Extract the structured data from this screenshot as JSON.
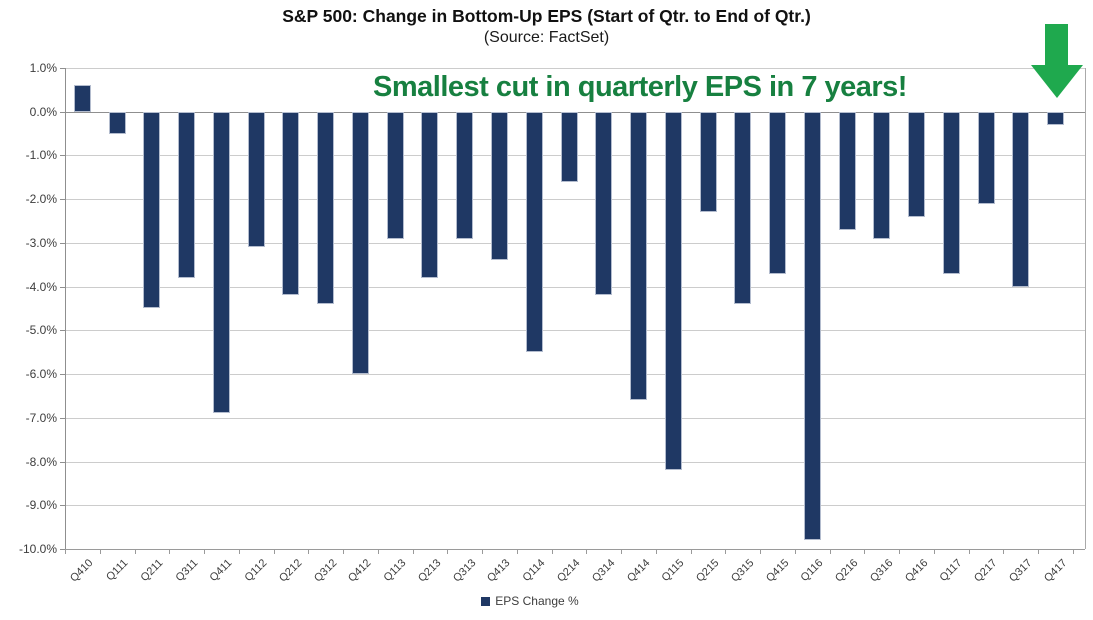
{
  "header": {
    "title": "S&P 500: Change in Bottom-Up EPS (Start of Qtr. to End of Qtr.)",
    "subtitle": "(Source: FactSet)"
  },
  "annotation": {
    "text": "Smallest cut in quarterly EPS in 7 years!",
    "color": "#178040"
  },
  "legend": {
    "label": "EPS Change %",
    "marker_color": "#1f3864"
  },
  "colors": {
    "bar_fill": "#1f3864",
    "bar_border": "#b3bcce",
    "grid": "#cccccc",
    "axis": "#8f8f8f",
    "arrow_green": "#1fa94e"
  },
  "chart_data": {
    "type": "bar",
    "title": "S&P 500: Change in Bottom-Up EPS (Start of Qtr. to End of Qtr.)",
    "subtitle": "(Source: FactSet)",
    "xlabel": "",
    "ylabel": "",
    "ylim": [
      -10.0,
      1.0
    ],
    "grid": true,
    "legend_position": "bottom",
    "legend": [
      "EPS Change %"
    ],
    "yticks": [
      1.0,
      0.0,
      -1.0,
      -2.0,
      -3.0,
      -4.0,
      -5.0,
      -6.0,
      -7.0,
      -8.0,
      -9.0,
      -10.0
    ],
    "ytick_labels": [
      "1.0%",
      "0.0%",
      "-1.0%",
      "-2.0%",
      "-3.0%",
      "-4.0%",
      "-5.0%",
      "-6.0%",
      "-7.0%",
      "-8.0%",
      "-9.0%",
      "-10.0%"
    ],
    "categories": [
      "Q410",
      "Q111",
      "Q211",
      "Q311",
      "Q411",
      "Q112",
      "Q212",
      "Q312",
      "Q412",
      "Q113",
      "Q213",
      "Q313",
      "Q413",
      "Q114",
      "Q214",
      "Q314",
      "Q414",
      "Q115",
      "Q215",
      "Q315",
      "Q415",
      "Q116",
      "Q216",
      "Q316",
      "Q416",
      "Q117",
      "Q217",
      "Q317",
      "Q417"
    ],
    "values": [
      0.6,
      -0.5,
      -4.5,
      -3.8,
      -6.9,
      -3.1,
      -4.2,
      -4.4,
      -6.0,
      -2.9,
      -3.8,
      -2.9,
      -3.4,
      -5.5,
      -1.6,
      -4.2,
      -6.6,
      -8.2,
      -2.3,
      -4.4,
      -3.7,
      -9.8,
      -2.7,
      -2.9,
      -2.4,
      -3.7,
      -2.1,
      -4.0,
      -0.3
    ],
    "annotation": "Smallest cut in quarterly EPS in 7 years!"
  }
}
